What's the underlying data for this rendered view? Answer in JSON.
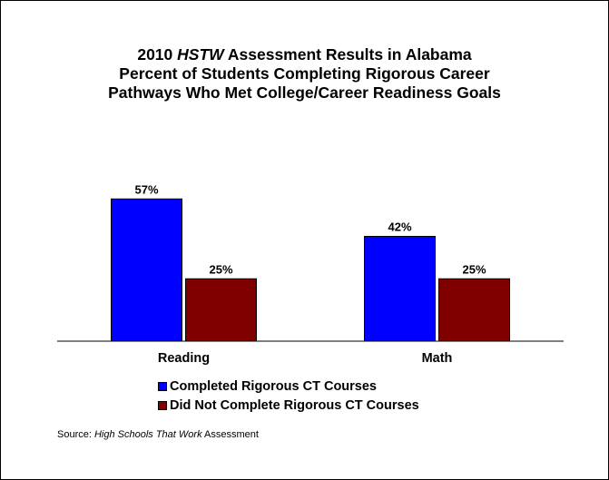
{
  "title": {
    "line1_prefix": "2010 ",
    "line1_emph": "HSTW",
    "line1_suffix": " Assessment Results in Alabama",
    "line2": "Percent of Students Completing Rigorous Career",
    "line3": "Pathways Who Met College/Career Readiness Goals"
  },
  "chart_data": {
    "type": "bar",
    "categories": [
      "Reading",
      "Math"
    ],
    "series": [
      {
        "name": "Completed Rigorous CT Courses",
        "values": [
          57,
          42
        ],
        "labels": [
          "57%",
          "42%"
        ],
        "color": "#0000FF"
      },
      {
        "name": "Did Not Complete Rigorous CT Courses",
        "values": [
          25,
          25
        ],
        "labels": [
          "25%",
          "25%"
        ],
        "color": "#800000"
      }
    ],
    "ylim": [
      0,
      70
    ],
    "grid": false,
    "legend_position": "bottom"
  },
  "source": {
    "prefix": "Source: ",
    "emph": "High Schools That Work",
    "suffix": " Assessment"
  }
}
